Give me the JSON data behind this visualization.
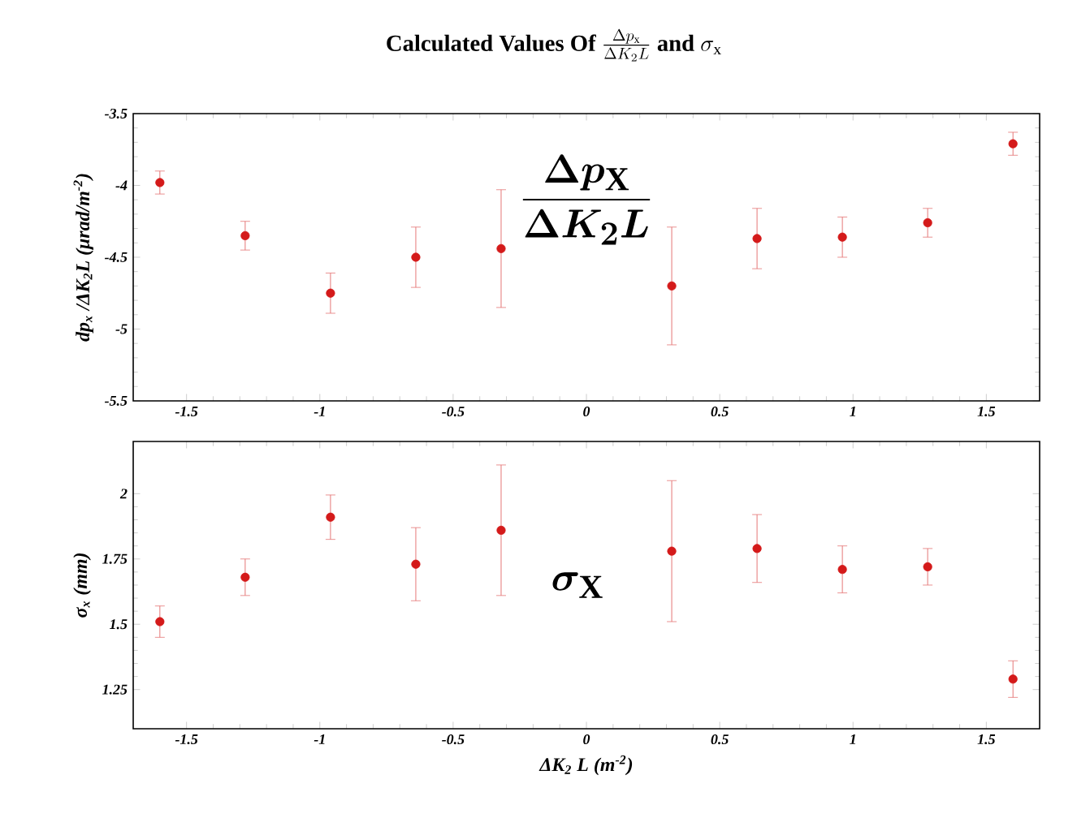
{
  "chart_data": [
    {
      "type": "scatter",
      "title": "\\textbf{Calculated Values Of } \\frac{\\Delta p_{\\mathrm{x}}}{\\Delta K_2 L}\\textbf{ and } \\sigma_{\\mathrm{x}}",
      "ylabel": "dp$_{x}$ /ΔK$_{2}$L (μrad/m$^{-2}$)",
      "x": [
        -1.6,
        -1.28,
        -0.96,
        -0.64,
        -0.32,
        0.32,
        0.64,
        0.96,
        1.28,
        1.6
      ],
      "series": [
        {
          "color": "#d41a1a",
          "values": [
            -3.98,
            -4.35,
            -4.75,
            -4.5,
            -4.44,
            -4.7,
            -4.37,
            -4.36,
            -4.26,
            -3.71
          ],
          "errors": [
            0.08,
            0.1,
            0.14,
            0.21,
            0.41,
            0.41,
            0.21,
            0.14,
            0.1,
            0.08
          ]
        }
      ],
      "xlim": [
        -1.7,
        1.7
      ],
      "xticks": [
        -1.5,
        -1,
        -0.5,
        0,
        0.5,
        1,
        1.5
      ],
      "ylim": [
        -5.5,
        -3.5
      ],
      "yticks": [
        -5.5,
        -5,
        -4.5,
        -4,
        -3.5
      ],
      "annotations": [
        "\\frac{\\boldsymbol{\\Delta p_{\\mathrm{X}}}}{\\boldsymbol{\\Delta K_2 L}}"
      ],
      "marker": "circle",
      "grid": false
    },
    {
      "type": "scatter",
      "xlabel": "ΔK$_{2}$ L (m$^{-2}$)",
      "ylabel": "σ$_{x}$ (mm)",
      "x": [
        -1.6,
        -1.28,
        -0.96,
        -0.64,
        -0.32,
        0.32,
        0.64,
        0.96,
        1.28,
        1.6
      ],
      "series": [
        {
          "color": "#d41a1a",
          "values": [
            1.51,
            1.68,
            1.91,
            1.73,
            1.86,
            1.78,
            1.79,
            1.71,
            1.72,
            1.29
          ],
          "errors": [
            0.06,
            0.07,
            0.085,
            0.14,
            0.25,
            0.27,
            0.13,
            0.09,
            0.07,
            0.07
          ]
        }
      ],
      "xlim": [
        -1.7,
        1.7
      ],
      "xticks": [
        -1.5,
        -1,
        -0.5,
        0,
        0.5,
        1,
        1.5
      ],
      "ylim": [
        1.1,
        2.2
      ],
      "yticks": [
        1.25,
        1.5,
        1.75,
        2
      ],
      "annotations": [
        "\\boldsymbol{\\sigma_{\\mathrm{X}}}"
      ],
      "marker": "circle",
      "grid": false
    }
  ]
}
